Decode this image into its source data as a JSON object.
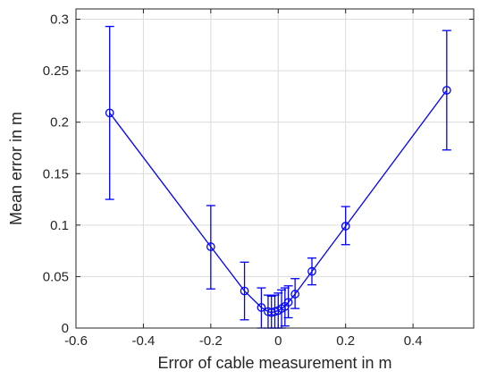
{
  "chart_data": {
    "type": "line",
    "title": "",
    "xlabel": "Error of cable measurement in m",
    "ylabel": "Mean error in m",
    "xlim": [
      -0.6,
      0.58
    ],
    "ylim": [
      0,
      0.31
    ],
    "xticks": [
      -0.6,
      -0.4,
      -0.2,
      0,
      0.2,
      0.4
    ],
    "xtick_labels": [
      "-0.6",
      "-0.4",
      "-0.2",
      "0",
      "0.2",
      "0.4"
    ],
    "yticks": [
      0,
      0.05,
      0.1,
      0.15,
      0.2,
      0.25,
      0.3
    ],
    "ytick_labels": [
      "0",
      "0.05",
      "0.1",
      "0.15",
      "0.2",
      "0.25",
      "0.3"
    ],
    "grid": true,
    "legend": "none",
    "series": [
      {
        "color": "#0000ff",
        "marker": "circle",
        "x": [
          -0.5,
          -0.2,
          -0.1,
          -0.05,
          -0.03,
          -0.02,
          -0.01,
          0,
          0.01,
          0.02,
          0.03,
          0.05,
          0.1,
          0.2,
          0.5
        ],
        "y": [
          0.209,
          0.079,
          0.036,
          0.02,
          0.016,
          0.015,
          0.016,
          0.017,
          0.019,
          0.021,
          0.025,
          0.033,
          0.055,
          0.099,
          0.231
        ],
        "err_low": [
          0.125,
          0.038,
          0.008,
          0.0,
          0.0,
          0.0,
          0.0,
          0.0,
          0.0,
          0.002,
          0.01,
          0.019,
          0.042,
          0.081,
          0.173
        ],
        "err_high": [
          0.293,
          0.119,
          0.064,
          0.039,
          0.032,
          0.031,
          0.032,
          0.034,
          0.037,
          0.039,
          0.041,
          0.048,
          0.068,
          0.118,
          0.289
        ]
      }
    ]
  }
}
